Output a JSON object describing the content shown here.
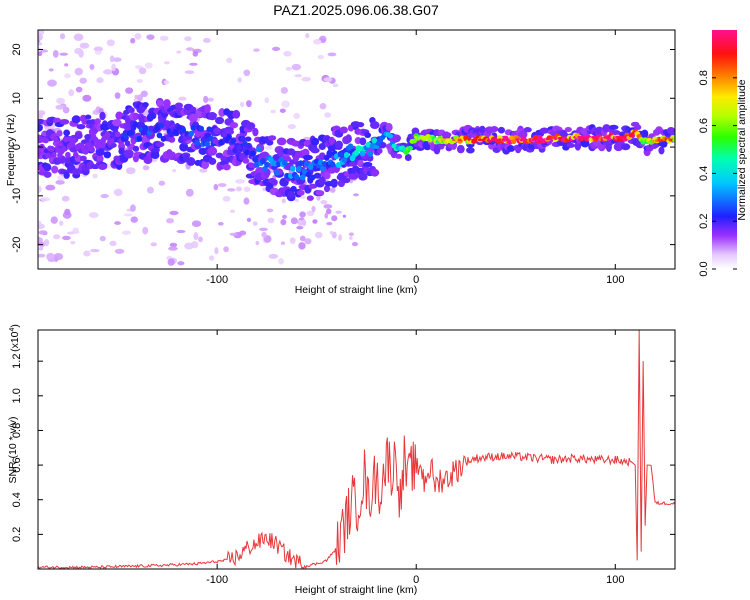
{
  "title": "PAZ1.2025.096.06.38.G07",
  "chart_data": [
    {
      "type": "heatmap",
      "xlabel": "Height of straight line (km)",
      "ylabel": "Frequency (Hz)",
      "xlim": [
        -190,
        130
      ],
      "ylim": [
        -25,
        24
      ],
      "xticks": [
        -100,
        0,
        100
      ],
      "yticks": [
        -20,
        -10,
        0,
        10,
        20
      ],
      "colorbar": {
        "label": "Normalized spectral amplitude",
        "range": [
          0,
          1
        ],
        "ticks": [
          0,
          0.2,
          0.4,
          0.6,
          0.8
        ],
        "colormap": "rainbow (white-violet-blue-cyan-green-yellow-red-magenta)"
      },
      "ridge": {
        "x": [
          -185,
          -170,
          -160,
          -150,
          -140,
          -130,
          -120,
          -110,
          -100,
          -90,
          -80,
          -70,
          -60,
          -50,
          -40,
          -30,
          -20,
          -15,
          -10,
          -5,
          0,
          10,
          20,
          40,
          60,
          80,
          100,
          105,
          110,
          115,
          125
        ],
        "freq": [
          0,
          0,
          0.5,
          2,
          3,
          3.5,
          3,
          2.5,
          2,
          1,
          -2,
          -4,
          -4.5,
          -4.5,
          -2,
          -1,
          0,
          3,
          0,
          -1,
          2,
          1.5,
          1.5,
          1.5,
          1.5,
          2,
          2,
          2,
          3,
          1,
          1.5
        ],
        "amplitude": [
          0.08,
          0.1,
          0.12,
          0.18,
          0.25,
          0.22,
          0.2,
          0.25,
          0.2,
          0.2,
          0.28,
          0.3,
          0.28,
          0.25,
          0.3,
          0.4,
          0.35,
          0.3,
          0.4,
          0.5,
          0.55,
          0.6,
          0.75,
          0.88,
          0.92,
          0.9,
          0.88,
          0.85,
          0.8,
          0.6,
          0.8
        ]
      }
    },
    {
      "type": "line",
      "xlabel": "Height of straight line (km)",
      "ylabel": "SNR (10 * v/v)",
      "yscale_label": "(x10",
      "yscale_exp": "4",
      "yscale_close": ")",
      "xlim": [
        -190,
        130
      ],
      "ylim": [
        0,
        1.38
      ],
      "xticks": [
        -100,
        0,
        100
      ],
      "yticks": [
        0.2,
        0.4,
        0.6,
        0.8,
        1.0,
        1.2
      ],
      "series": [
        {
          "color": "#e8383b",
          "x": [
            -190,
            -160,
            -130,
            -110,
            -95,
            -90,
            -85,
            -80,
            -75,
            -70,
            -65,
            -60,
            -55,
            -50,
            -45,
            -40,
            -36,
            -32,
            -30,
            -28,
            -26,
            -24,
            -22,
            -20,
            -18,
            -16,
            -14,
            -12,
            -10,
            -8,
            -6,
            -4,
            -2,
            0,
            2,
            4,
            6,
            8,
            10,
            12,
            15,
            20,
            25,
            30,
            40,
            50,
            60,
            70,
            80,
            90,
            100,
            105,
            108,
            110,
            111,
            112,
            113,
            114,
            115,
            116,
            118,
            120,
            125,
            130
          ],
          "y": [
            0.01,
            0.01,
            0.02,
            0.03,
            0.05,
            0.07,
            0.12,
            0.15,
            0.18,
            0.14,
            0.08,
            0.04,
            0.02,
            0.03,
            0.05,
            0.12,
            0.25,
            0.4,
            0.35,
            0.45,
            0.55,
            0.38,
            0.5,
            0.52,
            0.45,
            0.58,
            0.65,
            0.55,
            0.68,
            0.38,
            0.62,
            0.5,
            0.6,
            0.55,
            0.62,
            0.5,
            0.58,
            0.56,
            0.48,
            0.52,
            0.52,
            0.57,
            0.62,
            0.64,
            0.65,
            0.65,
            0.64,
            0.63,
            0.64,
            0.63,
            0.63,
            0.62,
            0.62,
            0.6,
            0.05,
            1.38,
            0.1,
            1.2,
            0.25,
            0.6,
            0.6,
            0.38,
            0.38,
            0.38
          ]
        }
      ]
    }
  ]
}
